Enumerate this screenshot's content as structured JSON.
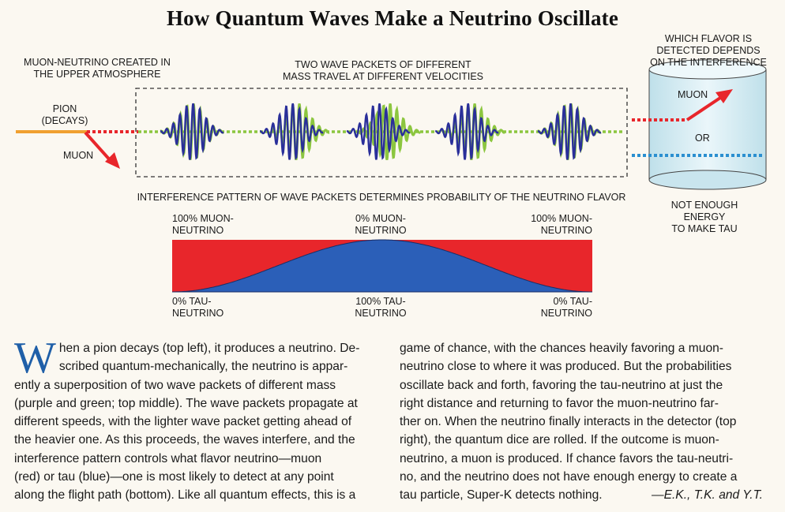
{
  "title": "How Quantum Waves Make a Neutrino Oscillate",
  "labels": {
    "muon_created": [
      "MUON-NEUTRINO CREATED IN",
      "THE UPPER ATMOSPHERE"
    ],
    "two_packets": [
      "TWO WAVE PACKETS OF DIFFERENT",
      "MASS TRAVEL AT DIFFERENT VELOCITIES"
    ],
    "pion": [
      "PION",
      "(DECAYS)"
    ],
    "muon_left": "MUON",
    "which_flavor": [
      "WHICH FLAVOR IS",
      "DETECTED DEPENDS",
      "ON THE INTERFERENCE"
    ],
    "detector_muon": "MUON",
    "detector_or": "OR",
    "not_enough": [
      "NOT ENOUGH",
      "ENERGY",
      "TO MAKE TAU"
    ],
    "interference": "INTERFERENCE PATTERN OF WAVE PACKETS DETERMINES PROBABILITY OF THE NEUTRINO FLAVOR",
    "top_left": [
      "100% MUON-",
      "NEUTRINO"
    ],
    "top_mid": [
      "0% MUON-",
      "NEUTRINO"
    ],
    "top_right": [
      "100% MUON-",
      "NEUTRINO"
    ],
    "bot_left": [
      "0% TAU-",
      "NEUTRINO"
    ],
    "bot_mid": [
      "100% TAU-",
      "NEUTRINO"
    ],
    "bot_right": [
      "0% TAU-",
      "NEUTRINO"
    ]
  },
  "colors": {
    "muon_red": "#e8262b",
    "tau_blue": "#2b5fb8",
    "packet_purple": "#2a2f9a",
    "packet_green": "#8cc63f",
    "pion_orange": "#f0a030",
    "detector_fill": "#d7ecf3"
  },
  "article": {
    "dropcap": "W",
    "left_lines": [
      "hen a pion decays (top left), it produces a neutrino. De-",
      "scribed quantum-mechanically, the neutrino is appar-",
      "ently a superposition of two wave packets of different mass",
      "(purple and green; top middle). The wave packets propagate at",
      "different speeds, with the lighter wave packet getting ahead of",
      "the heavier one. As this proceeds, the waves interfere, and the",
      "interference pattern controls what flavor neutrino—muon",
      "(red) or tau (blue)—one is most likely to detect at any point",
      "along the flight path (bottom). Like all quantum effects, this is a"
    ],
    "right_lines": [
      "game of chance, with the chances heavily favoring a muon-",
      "neutrino close to where it was produced. But the probabilities",
      "oscillate back and forth, favoring the tau-neutrino at just the",
      "right distance and returning to favor the muon-neutrino far-",
      "ther on. When the neutrino finally interacts in the detector (top",
      "right), the quantum dice are rolled. If the outcome is muon-",
      "neutrino, a muon is produced. If chance favors the tau-neutri-",
      "no, and the neutrino does not have enough energy to create a",
      "tau particle, Super-K detects nothing."
    ],
    "signature": "—E.K., T.K. and Y.T."
  }
}
